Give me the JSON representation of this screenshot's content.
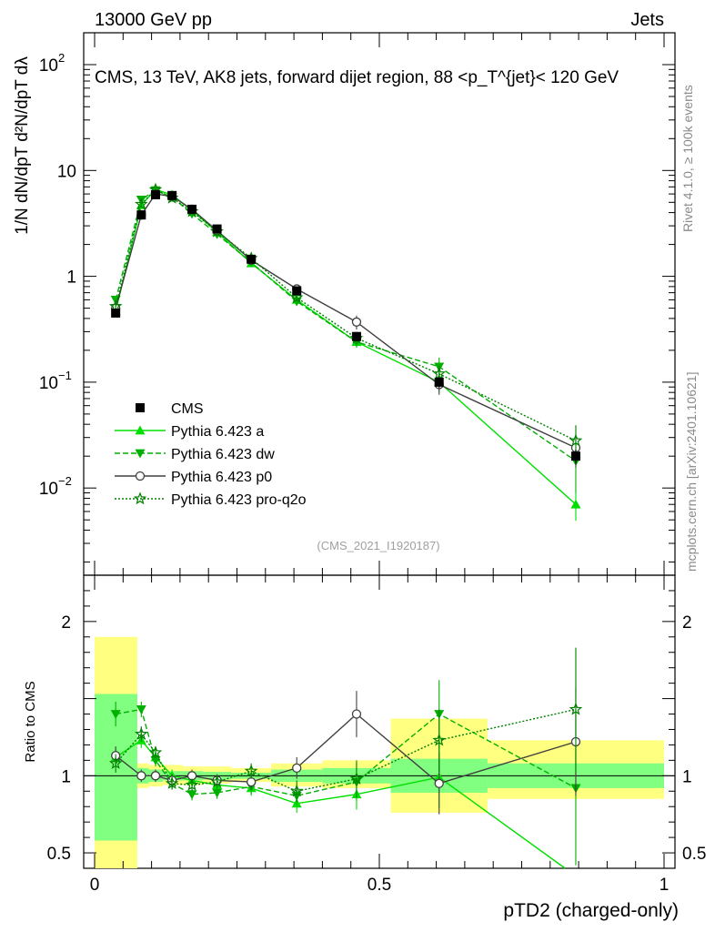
{
  "header": {
    "left": "13000 GeV pp",
    "right": "Jets"
  },
  "side": {
    "rivet": "Rivet 4.1.0, ≥ 100k events",
    "site": "mcplots.cern.ch [arXiv:2401.10621]"
  },
  "ylabel_top": "1/N dN/dpT d²N/dpT dλ",
  "chart_data": {
    "type": "line",
    "title": "CMS, 13 TeV, AK8 jets, forward dijet region, 88 <p_T^{jet}< 120 GeV",
    "xlabel": "pTD2 (charged-only)",
    "ratio_ylabel": "Ratio to CMS",
    "analysis_id": "(CMS_2021_I1920187)",
    "xlim": [
      0,
      1
    ],
    "ylim_main": [
      0.0015,
      200
    ],
    "ylim_ratio": [
      0.4,
      2.3
    ],
    "x_ticks": [
      {
        "v": 0,
        "label": "0"
      },
      {
        "v": 0.5,
        "label": "0.5"
      },
      {
        "v": 1,
        "label": "1"
      }
    ],
    "main_y_ticks": [
      {
        "v": 0.01,
        "label": "10",
        "sup": "−2"
      },
      {
        "v": 0.1,
        "label": "10",
        "sup": "−1"
      },
      {
        "v": 1,
        "label": "1",
        "sup": ""
      },
      {
        "v": 10,
        "label": "10",
        "sup": ""
      },
      {
        "v": 100,
        "label": "10",
        "sup": "2"
      }
    ],
    "ratio_y_ticks": [
      {
        "v": 0.5,
        "label": "0.5"
      },
      {
        "v": 1,
        "label": "1"
      },
      {
        "v": 2,
        "label": "2"
      }
    ],
    "bins": [
      [
        0,
        0.075
      ],
      [
        0.075,
        0.095
      ],
      [
        0.095,
        0.12
      ],
      [
        0.12,
        0.155
      ],
      [
        0.155,
        0.19
      ],
      [
        0.19,
        0.24
      ],
      [
        0.24,
        0.31
      ],
      [
        0.31,
        0.4
      ],
      [
        0.4,
        0.52
      ],
      [
        0.52,
        0.69
      ],
      [
        0.69,
        1.0
      ]
    ],
    "x": [
      0.037,
      0.082,
      0.107,
      0.136,
      0.171,
      0.215,
      0.275,
      0.355,
      0.46,
      0.605,
      0.845
    ],
    "data": {
      "name": "CMS",
      "values": [
        0.45,
        3.8,
        5.9,
        5.8,
        4.3,
        2.8,
        1.45,
        0.73,
        0.27,
        0.1,
        0.02
      ],
      "errors": [
        0.03,
        0.2,
        0.3,
        0.3,
        0.2,
        0.12,
        0.06,
        0.035,
        0.02,
        0.012,
        0.003
      ]
    },
    "band_green": [
      [
        0.58,
        1.53
      ],
      [
        0.95,
        1.05
      ],
      [
        0.96,
        1.04
      ],
      [
        0.97,
        1.03
      ],
      [
        0.97,
        1.03
      ],
      [
        0.975,
        1.025
      ],
      [
        0.98,
        1.02
      ],
      [
        0.96,
        1.04
      ],
      [
        0.95,
        1.05
      ],
      [
        0.89,
        1.11
      ],
      [
        0.92,
        1.08
      ]
    ],
    "band_yellow": [
      [
        0.35,
        1.9
      ],
      [
        0.92,
        1.08
      ],
      [
        0.93,
        1.07
      ],
      [
        0.94,
        1.07
      ],
      [
        0.94,
        1.06
      ],
      [
        0.95,
        1.06
      ],
      [
        0.96,
        1.05
      ],
      [
        0.93,
        1.08
      ],
      [
        0.92,
        1.1
      ],
      [
        0.76,
        1.37
      ],
      [
        0.85,
        1.23
      ]
    ],
    "series": [
      {
        "name": "Pythia 6.423 a",
        "color": "#00e000",
        "dash": "",
        "marker": "triangle-up",
        "values": [
          0.47,
          4.7,
          6.6,
          5.9,
          4.2,
          2.62,
          1.33,
          0.6,
          0.24,
          0.1,
          0.007
        ],
        "ratio": [
          1.12,
          1.23,
          1.12,
          1.0,
          0.97,
          0.94,
          0.92,
          0.82,
          0.88,
          0.99,
          0.35
        ],
        "rerr": [
          0.06,
          0.05,
          0.04,
          0.04,
          0.04,
          0.04,
          0.05,
          0.06,
          0.1,
          0.2,
          0.3
        ]
      },
      {
        "name": "Pythia 6.423 dw",
        "color": "#00b000",
        "dash": "6,3",
        "marker": "triangle-down",
        "values": [
          0.6,
          5.3,
          6.5,
          5.6,
          3.9,
          2.5,
          1.35,
          0.58,
          0.24,
          0.14,
          0.018
        ],
        "ratio": [
          1.4,
          1.43,
          1.1,
          0.95,
          0.88,
          0.89,
          0.93,
          0.87,
          0.96,
          1.4,
          0.92
        ],
        "rerr": [
          0.08,
          0.05,
          0.04,
          0.04,
          0.04,
          0.04,
          0.05,
          0.06,
          0.12,
          0.22,
          0.5
        ]
      },
      {
        "name": "Pythia 6.423 p0",
        "color": "#404040",
        "dash": "",
        "marker": "circle-open",
        "values": [
          0.5,
          3.8,
          6.0,
          5.7,
          4.3,
          2.7,
          1.42,
          0.76,
          0.37,
          0.095,
          0.024
        ],
        "ratio": [
          1.13,
          1.0,
          1.0,
          0.97,
          1.0,
          0.97,
          0.96,
          1.05,
          1.4,
          0.95,
          1.22
        ],
        "rerr": [
          0.06,
          0.04,
          0.04,
          0.04,
          0.04,
          0.04,
          0.05,
          0.07,
          0.15,
          0.2,
          0.35
        ]
      },
      {
        "name": "Pythia 6.423 pro-q2o",
        "color": "#008000",
        "dash": "2,2",
        "marker": "star-open",
        "values": [
          0.52,
          4.8,
          6.6,
          5.5,
          4.1,
          2.65,
          1.48,
          0.63,
          0.26,
          0.12,
          0.028
        ],
        "ratio": [
          1.08,
          1.27,
          1.15,
          0.95,
          0.94,
          0.96,
          1.03,
          0.9,
          0.98,
          1.23,
          1.43
        ],
        "rerr": [
          0.06,
          0.05,
          0.04,
          0.04,
          0.04,
          0.04,
          0.05,
          0.07,
          0.12,
          0.2,
          0.4
        ]
      }
    ]
  }
}
